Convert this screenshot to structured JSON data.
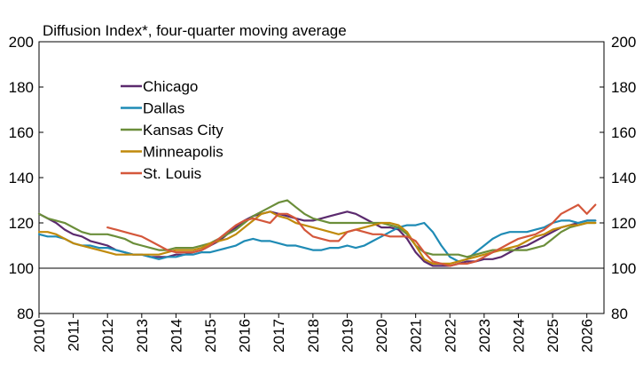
{
  "chart_data": {
    "type": "line",
    "title": "Diffusion Index*, four-quarter moving average",
    "xlabel": "",
    "ylabel": "",
    "xlim": [
      2010,
      2026.5
    ],
    "ylim": [
      80,
      200
    ],
    "yticks": [
      80,
      100,
      120,
      140,
      160,
      180,
      200
    ],
    "xticks": [
      "2010",
      "2011",
      "2012",
      "2013",
      "2014",
      "2015",
      "2016",
      "2017",
      "2018",
      "2019",
      "2020",
      "2021",
      "2022",
      "2023",
      "2024",
      "2025",
      "2026"
    ],
    "legend_position": "upper-left",
    "grid": false,
    "reference_line": 100,
    "series": [
      {
        "name": "Chicago",
        "color": "#5b2a6e",
        "x": [
          2010,
          2010.25,
          2010.5,
          2010.75,
          2011,
          2011.25,
          2011.5,
          2011.75,
          2012,
          2012.25,
          2012.5,
          2012.75,
          2013,
          2013.25,
          2013.5,
          2013.75,
          2014,
          2014.25,
          2014.5,
          2014.75,
          2015,
          2015.25,
          2015.5,
          2015.75,
          2016,
          2016.25,
          2016.5,
          2016.75,
          2017,
          2017.25,
          2017.5,
          2017.75,
          2018,
          2018.25,
          2018.5,
          2018.75,
          2019,
          2019.25,
          2019.5,
          2019.75,
          2020,
          2020.25,
          2020.5,
          2020.75,
          2021,
          2021.25,
          2021.5,
          2021.75,
          2022,
          2022.25,
          2022.5,
          2022.75,
          2023,
          2023.25,
          2023.5,
          2023.75,
          2024,
          2024.25,
          2024.5,
          2024.75,
          2025,
          2025.25,
          2025.5,
          2025.75,
          2026,
          2026.25
        ],
        "y": [
          124,
          122,
          120,
          117,
          115,
          114,
          112,
          111,
          110,
          108,
          107,
          106,
          106,
          105,
          105,
          105,
          106,
          106,
          107,
          108,
          110,
          112,
          115,
          118,
          121,
          123,
          124,
          125,
          124,
          123,
          122,
          121,
          121,
          122,
          123,
          124,
          125,
          124,
          122,
          120,
          118,
          118,
          117,
          113,
          107,
          103,
          101,
          101,
          101,
          102,
          103,
          103,
          104,
          104,
          105,
          107,
          109,
          110,
          112,
          114,
          116,
          118,
          119,
          120,
          121,
          121
        ]
      },
      {
        "name": "Dallas",
        "color": "#1f8bb5",
        "x": [
          2010,
          2010.25,
          2010.5,
          2010.75,
          2011,
          2011.25,
          2011.5,
          2011.75,
          2012,
          2012.25,
          2012.5,
          2012.75,
          2013,
          2013.25,
          2013.5,
          2013.75,
          2014,
          2014.25,
          2014.5,
          2014.75,
          2015,
          2015.25,
          2015.5,
          2015.75,
          2016,
          2016.25,
          2016.5,
          2016.75,
          2017,
          2017.25,
          2017.5,
          2017.75,
          2018,
          2018.25,
          2018.5,
          2018.75,
          2019,
          2019.25,
          2019.5,
          2019.75,
          2020,
          2020.25,
          2020.5,
          2020.75,
          2021,
          2021.25,
          2021.5,
          2021.75,
          2022,
          2022.25,
          2022.5,
          2022.75,
          2023,
          2023.25,
          2023.5,
          2023.75,
          2024,
          2024.25,
          2024.5,
          2024.75,
          2025,
          2025.25,
          2025.5,
          2025.75,
          2026,
          2026.25
        ],
        "y": [
          115,
          114,
          114,
          113,
          111,
          110,
          110,
          109,
          109,
          108,
          107,
          106,
          106,
          105,
          104,
          105,
          105,
          106,
          106,
          107,
          107,
          108,
          109,
          110,
          112,
          113,
          112,
          112,
          111,
          110,
          110,
          109,
          108,
          108,
          109,
          109,
          110,
          109,
          110,
          112,
          114,
          116,
          118,
          119,
          119,
          120,
          116,
          110,
          105,
          103,
          104,
          107,
          110,
          113,
          115,
          116,
          116,
          116,
          117,
          118,
          120,
          121,
          121,
          120,
          121,
          121
        ]
      },
      {
        "name": "Kansas City",
        "color": "#6b8e3a",
        "x": [
          2010,
          2010.25,
          2010.5,
          2010.75,
          2011,
          2011.25,
          2011.5,
          2011.75,
          2012,
          2012.25,
          2012.5,
          2012.75,
          2013,
          2013.25,
          2013.5,
          2013.75,
          2014,
          2014.25,
          2014.5,
          2014.75,
          2015,
          2015.25,
          2015.5,
          2015.75,
          2016,
          2016.25,
          2016.5,
          2016.75,
          2017,
          2017.25,
          2017.5,
          2017.75,
          2018,
          2018.25,
          2018.5,
          2018.75,
          2019,
          2019.25,
          2019.5,
          2019.75,
          2020,
          2020.25,
          2020.5,
          2020.75,
          2021,
          2021.25,
          2021.5,
          2021.75,
          2022,
          2022.25,
          2022.5,
          2022.75,
          2023,
          2023.25,
          2023.5,
          2023.75,
          2024,
          2024.25,
          2024.5,
          2024.75,
          2025,
          2025.25,
          2025.5,
          2025.75,
          2026,
          2026.25
        ],
        "y": [
          124,
          122,
          121,
          120,
          118,
          116,
          115,
          115,
          115,
          114,
          113,
          111,
          110,
          109,
          108,
          108,
          109,
          109,
          109,
          110,
          111,
          113,
          115,
          117,
          120,
          123,
          125,
          127,
          129,
          130,
          127,
          124,
          122,
          121,
          120,
          120,
          120,
          120,
          120,
          120,
          120,
          119,
          118,
          115,
          110,
          107,
          106,
          106,
          106,
          106,
          105,
          106,
          107,
          108,
          108,
          108,
          108,
          108,
          109,
          110,
          113,
          116,
          118,
          119,
          120,
          120
        ]
      },
      {
        "name": "Minneapolis",
        "color": "#c08a0b",
        "x": [
          2010,
          2010.25,
          2010.5,
          2010.75,
          2011,
          2011.25,
          2011.5,
          2011.75,
          2012,
          2012.25,
          2012.5,
          2012.75,
          2013,
          2013.25,
          2013.5,
          2013.75,
          2014,
          2014.25,
          2014.5,
          2014.75,
          2015,
          2015.25,
          2015.5,
          2015.75,
          2016,
          2016.25,
          2016.5,
          2016.75,
          2017,
          2017.25,
          2017.5,
          2017.75,
          2018,
          2018.25,
          2018.5,
          2018.75,
          2019,
          2019.25,
          2019.5,
          2019.75,
          2020,
          2020.25,
          2020.5,
          2020.75,
          2021,
          2021.25,
          2021.5,
          2021.75,
          2022,
          2022.25,
          2022.5,
          2022.75,
          2023,
          2023.25,
          2023.5,
          2023.75,
          2024,
          2024.25,
          2024.5,
          2024.75,
          2025,
          2025.25,
          2025.5,
          2025.75,
          2026,
          2026.25
        ],
        "y": [
          116,
          116,
          115,
          113,
          111,
          110,
          109,
          108,
          107,
          106,
          106,
          106,
          106,
          106,
          106,
          107,
          108,
          108,
          108,
          109,
          111,
          112,
          113,
          115,
          118,
          121,
          124,
          125,
          123,
          122,
          120,
          119,
          118,
          117,
          116,
          115,
          116,
          117,
          118,
          119,
          120,
          120,
          119,
          116,
          110,
          104,
          102,
          102,
          102,
          103,
          104,
          105,
          106,
          107,
          108,
          109,
          110,
          112,
          114,
          115,
          117,
          118,
          119,
          119,
          120,
          120
        ]
      },
      {
        "name": "St. Louis",
        "color": "#d4573b",
        "x": [
          2012,
          2012.25,
          2012.5,
          2012.75,
          2013,
          2013.25,
          2013.5,
          2013.75,
          2014,
          2014.25,
          2014.5,
          2014.75,
          2015,
          2015.25,
          2015.5,
          2015.75,
          2016,
          2016.25,
          2016.5,
          2016.75,
          2017,
          2017.25,
          2017.5,
          2017.75,
          2018,
          2018.25,
          2018.5,
          2018.75,
          2019,
          2019.25,
          2019.5,
          2019.75,
          2020,
          2020.25,
          2020.5,
          2020.75,
          2021,
          2021.25,
          2021.5,
          2021.75,
          2022,
          2022.25,
          2022.5,
          2022.75,
          2023,
          2023.25,
          2023.5,
          2023.75,
          2024,
          2024.25,
          2024.5,
          2024.75,
          2025,
          2025.25,
          2025.5,
          2025.75,
          2026,
          2026.25
        ],
        "y": [
          118,
          117,
          116,
          115,
          114,
          112,
          110,
          108,
          107,
          107,
          107,
          108,
          110,
          113,
          116,
          119,
          121,
          122,
          121,
          120,
          124,
          124,
          122,
          117,
          114,
          113,
          112,
          112,
          116,
          117,
          116,
          115,
          115,
          114,
          114,
          114,
          112,
          107,
          103,
          102,
          101,
          102,
          102,
          103,
          105,
          107,
          109,
          111,
          113,
          114,
          115,
          117,
          120,
          124,
          126,
          128,
          124,
          128
        ]
      }
    ]
  }
}
